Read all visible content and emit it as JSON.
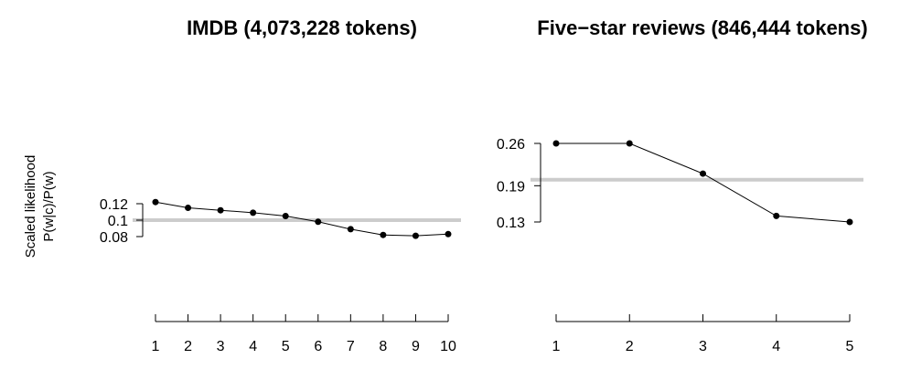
{
  "y_axis_label": [
    "Scaled likelihood",
    "P(w|c)/P(w)"
  ],
  "colors": {
    "series": "#000000",
    "reference_line": "#cccccc"
  },
  "chart_data": [
    {
      "type": "line",
      "title": "IMDB (4,073,228 tokens)",
      "x": [
        1,
        2,
        3,
        4,
        5,
        6,
        7,
        8,
        9,
        10
      ],
      "values": [
        0.122,
        0.115,
        0.112,
        0.109,
        0.105,
        0.098,
        0.089,
        0.082,
        0.081,
        0.083
      ],
      "reference_line": 0.1,
      "y_ticks": [
        0.08,
        0.1,
        0.12
      ],
      "y_tick_labels": [
        "0.08",
        "0.1",
        "0.12"
      ],
      "x_tick_labels": [
        "1",
        "2",
        "3",
        "4",
        "5",
        "6",
        "7",
        "8",
        "9",
        "10"
      ],
      "grid": false
    },
    {
      "type": "line",
      "title": "Five−star reviews (846,444 tokens)",
      "x": [
        1,
        2,
        3,
        4,
        5
      ],
      "values": [
        0.26,
        0.26,
        0.21,
        0.14,
        0.13
      ],
      "reference_line": 0.2,
      "y_ticks": [
        0.13,
        0.19,
        0.26
      ],
      "y_tick_labels": [
        "0.13",
        "0.19",
        "0.26"
      ],
      "x_tick_labels": [
        "1",
        "2",
        "3",
        "4",
        "5"
      ],
      "grid": false
    }
  ]
}
